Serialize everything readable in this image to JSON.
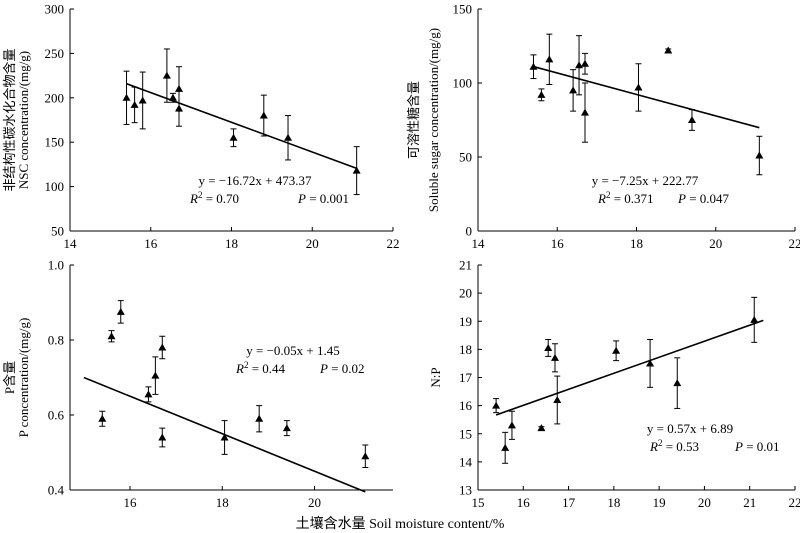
{
  "figure": {
    "xlabel": "土壤含水量 Soil moisture content/%"
  },
  "chart_data": [
    {
      "type": "scatter",
      "panel": "top-left",
      "ylabel_cn": "非结构性碳水化合物含量",
      "ylabel_en": "NSC concentration/(mg/g)",
      "xlim": [
        14,
        22
      ],
      "ylim": [
        50,
        300
      ],
      "xticks": [
        14,
        16,
        18,
        20,
        22
      ],
      "yticks": [
        50,
        100,
        150,
        200,
        250,
        300
      ],
      "points": [
        {
          "x": 15.4,
          "y": 200,
          "err": 30
        },
        {
          "x": 15.6,
          "y": 192,
          "err": 20
        },
        {
          "x": 15.8,
          "y": 197,
          "err": 32
        },
        {
          "x": 16.4,
          "y": 225,
          "err": 30
        },
        {
          "x": 16.55,
          "y": 200,
          "err": 5
        },
        {
          "x": 16.7,
          "y": 210,
          "err": 25
        },
        {
          "x": 16.7,
          "y": 188,
          "err": 20
        },
        {
          "x": 18.05,
          "y": 155,
          "err": 10
        },
        {
          "x": 18.8,
          "y": 180,
          "err": 23
        },
        {
          "x": 19.4,
          "y": 155,
          "err": 25
        },
        {
          "x": 21.1,
          "y": 118,
          "err": 27
        }
      ],
      "fit": {
        "slope": -16.72,
        "intercept": 473.37,
        "x": [
          15.4,
          21.1
        ]
      },
      "eq_line": "y = −16.72x + 473.37",
      "stats_r2": "R2 = 0.70",
      "stats_p": "P = 0.001"
    },
    {
      "type": "scatter",
      "panel": "top-right",
      "ylabel_cn": "可溶性糖含量",
      "ylabel_en": "Soluble sugar concentration/(mg/g)",
      "xlim": [
        14,
        22
      ],
      "ylim": [
        0,
        150
      ],
      "xticks": [
        14,
        16,
        18,
        20,
        22
      ],
      "yticks": [
        0,
        50,
        100,
        150
      ],
      "points": [
        {
          "x": 15.4,
          "y": 111,
          "err": 8
        },
        {
          "x": 15.6,
          "y": 92,
          "err": 4
        },
        {
          "x": 15.8,
          "y": 116,
          "err": 17
        },
        {
          "x": 16.4,
          "y": 95,
          "err": 14
        },
        {
          "x": 16.55,
          "y": 112,
          "err": 20
        },
        {
          "x": 16.7,
          "y": 113,
          "err": 7
        },
        {
          "x": 16.7,
          "y": 80,
          "err": 20
        },
        {
          "x": 18.05,
          "y": 97,
          "err": 16
        },
        {
          "x": 18.8,
          "y": 122,
          "err": 1
        },
        {
          "x": 19.4,
          "y": 75,
          "err": 7
        },
        {
          "x": 21.1,
          "y": 51,
          "err": 13
        }
      ],
      "fit": {
        "slope": -7.25,
        "intercept": 222.77,
        "x": [
          15.4,
          21.1
        ]
      },
      "eq_line": "y = −7.25x + 222.77",
      "stats_r2": "R2 = 0.371",
      "stats_p": "P = 0.047"
    },
    {
      "type": "scatter",
      "panel": "bottom-left",
      "ylabel_cn": "P含量",
      "ylabel_en": "P concentration/(mg/g)",
      "xlim": [
        14.7,
        21.7
      ],
      "ylim": [
        0.4,
        1.0
      ],
      "xticks": [
        16,
        18,
        20
      ],
      "yticks": [
        0.4,
        0.6,
        0.8,
        1.0
      ],
      "points": [
        {
          "x": 15.4,
          "y": 0.59,
          "err": 0.02
        },
        {
          "x": 15.6,
          "y": 0.81,
          "err": 0.015
        },
        {
          "x": 15.8,
          "y": 0.875,
          "err": 0.03
        },
        {
          "x": 16.4,
          "y": 0.655,
          "err": 0.02
        },
        {
          "x": 16.55,
          "y": 0.705,
          "err": 0.05
        },
        {
          "x": 16.7,
          "y": 0.78,
          "err": 0.03
        },
        {
          "x": 16.7,
          "y": 0.54,
          "err": 0.025
        },
        {
          "x": 18.05,
          "y": 0.54,
          "err": 0.045
        },
        {
          "x": 18.8,
          "y": 0.59,
          "err": 0.035
        },
        {
          "x": 19.4,
          "y": 0.565,
          "err": 0.02
        },
        {
          "x": 21.1,
          "y": 0.49,
          "err": 0.03
        }
      ],
      "fit": {
        "slope": -0.05,
        "intercept": 1.45,
        "x": [
          15.0,
          21.1
        ]
      },
      "eq_line": "y = −0.05x + 1.45",
      "stats_r2": "R2 = 0.44",
      "stats_p": "P = 0.02"
    },
    {
      "type": "scatter",
      "panel": "bottom-right",
      "ylabel_cn": "",
      "ylabel_en": "N:P",
      "xlim": [
        15,
        22
      ],
      "ylim": [
        13,
        21
      ],
      "xticks": [
        15,
        16,
        17,
        18,
        19,
        20,
        21,
        22
      ],
      "yticks": [
        13,
        14,
        15,
        16,
        17,
        18,
        19,
        20,
        21
      ],
      "points": [
        {
          "x": 15.4,
          "y": 16.0,
          "err": 0.25
        },
        {
          "x": 15.6,
          "y": 14.5,
          "err": 0.55
        },
        {
          "x": 15.75,
          "y": 15.3,
          "err": 0.5
        },
        {
          "x": 16.4,
          "y": 15.2,
          "err": 0.05
        },
        {
          "x": 16.55,
          "y": 18.05,
          "err": 0.3
        },
        {
          "x": 16.7,
          "y": 17.7,
          "err": 0.5
        },
        {
          "x": 16.75,
          "y": 16.2,
          "err": 0.85
        },
        {
          "x": 18.05,
          "y": 17.95,
          "err": 0.35
        },
        {
          "x": 18.8,
          "y": 17.5,
          "err": 0.85
        },
        {
          "x": 19.4,
          "y": 16.8,
          "err": 0.9
        },
        {
          "x": 21.1,
          "y": 19.05,
          "err": 0.8
        }
      ],
      "fit": {
        "slope": 0.57,
        "intercept": 6.89,
        "x": [
          15.4,
          21.3
        ]
      },
      "eq_line": "y = 0.57x + 6.89",
      "stats_r2": "R2 = 0.53",
      "stats_p": "P = 0.01"
    }
  ]
}
